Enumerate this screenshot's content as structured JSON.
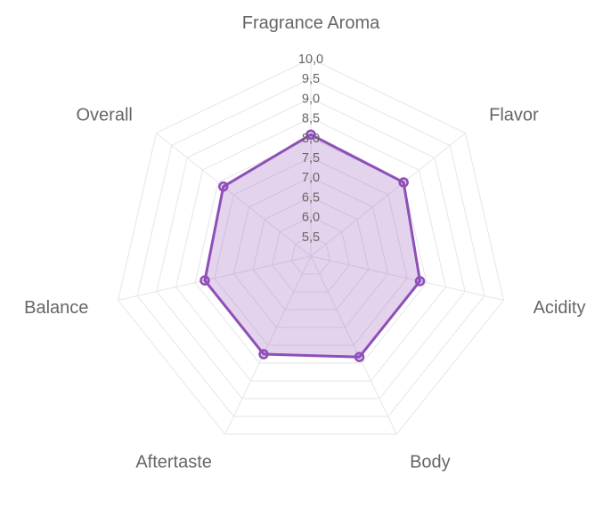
{
  "chart_data": {
    "type": "radar",
    "categories": [
      "Fragrance Aroma",
      "Flavor",
      "Acidity",
      "Body",
      "Aftertaste",
      "Balance",
      "Overall"
    ],
    "series": [
      {
        "values": [
          8.08,
          8.0,
          7.83,
          7.83,
          7.75,
          7.75,
          7.83
        ],
        "color": "#8e4fb8",
        "fill": "rgba(142,79,184,0.25)"
      }
    ],
    "r_min": 5.0,
    "r_max": 10.0,
    "ticks": [
      "5,5",
      "6,0",
      "6,5",
      "7,0",
      "7,5",
      "8,0",
      "8,5",
      "9,0",
      "9,5",
      "10,0"
    ],
    "tick_values": [
      5.5,
      6.0,
      6.5,
      7.0,
      7.5,
      8.0,
      8.5,
      9.0,
      9.5,
      10.0
    ],
    "grid": true,
    "grid_color": "#e6e6e6",
    "label_color": "#666666"
  }
}
